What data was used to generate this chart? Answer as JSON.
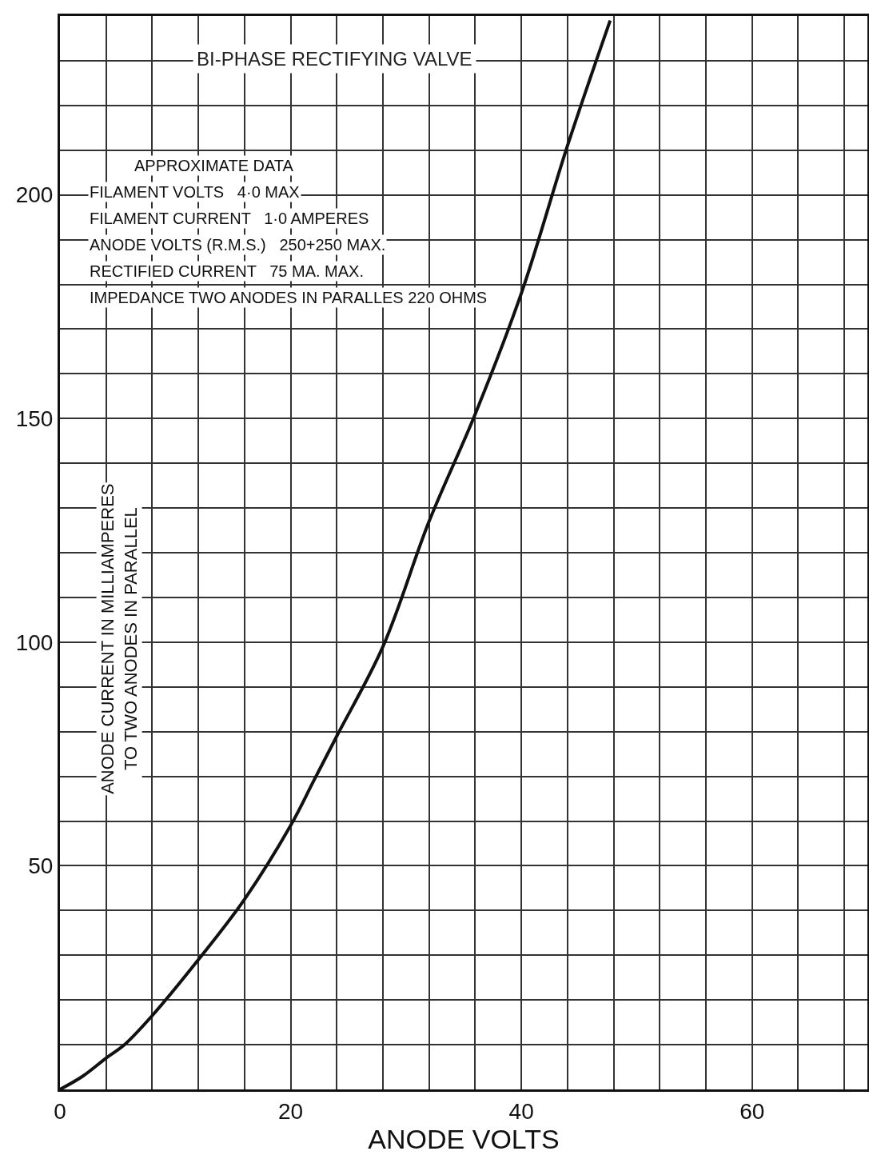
{
  "chart_data": {
    "type": "line",
    "title": "BI-PHASE RECTIFYING VALVE",
    "xlabel": "ANODE VOLTS",
    "ylabel": "ANODE CURRENT IN MILLIAMPERES\nTO TWO ANODES IN PARALLEL",
    "annotations": [
      "APPROXIMATE DATA",
      "FILAMENT VOLTS   4·0 MAX",
      "FILAMENT CURRENT   1·0 AMPERES",
      "ANODE VOLTS (R.M.S.)   250+250 MAX.",
      "RECTIFIED CURRENT   75 MA. MAX.",
      "IMPEDANCE TWO ANODES IN PARALLES 220 OHMS"
    ],
    "x": [
      0,
      2,
      4,
      5.6,
      8,
      12,
      16,
      20,
      22,
      24,
      28,
      32,
      36,
      40,
      44,
      47.7
    ],
    "series": [
      {
        "color": "#111111",
        "values": [
          0,
          3,
          7,
          10,
          16.5,
          29,
          42.5,
          59,
          69,
          79,
          99,
          127,
          151,
          178,
          211,
          239
        ]
      }
    ],
    "xlim": [
      0,
      70
    ],
    "ylim": [
      0,
      240
    ],
    "xticks": [
      0,
      {
        "value": 4,
        "label": null
      },
      {
        "value": 8,
        "label": null
      },
      {
        "value": 12,
        "label": null
      },
      {
        "value": 16,
        "label": null
      },
      20,
      {
        "value": 24,
        "label": null
      },
      {
        "value": 28,
        "label": null
      },
      {
        "value": 32,
        "label": null
      },
      {
        "value": 36,
        "label": null
      },
      40,
      {
        "value": 44,
        "label": null
      },
      {
        "value": 48,
        "label": null
      },
      {
        "value": 52,
        "label": null
      },
      {
        "value": 56,
        "label": null
      },
      60,
      {
        "value": 64,
        "label": null
      },
      {
        "value": 68,
        "label": null
      }
    ],
    "yticks": [
      {
        "value": 10,
        "label": null
      },
      {
        "value": 20,
        "label": null
      },
      {
        "value": 30,
        "label": null
      },
      {
        "value": 40,
        "label": null
      },
      50,
      {
        "value": 60,
        "label": null
      },
      {
        "value": 70,
        "label": null
      },
      {
        "value": 80,
        "label": null
      },
      {
        "value": 90,
        "label": null
      },
      100,
      {
        "value": 110,
        "label": null
      },
      {
        "value": 120,
        "label": null
      },
      {
        "value": 130,
        "label": null
      },
      {
        "value": 140,
        "label": null
      },
      150,
      {
        "value": 160,
        "label": null
      },
      {
        "value": 170,
        "label": null
      },
      {
        "value": 180,
        "label": null
      },
      {
        "value": 190,
        "label": null
      },
      200,
      {
        "value": 210,
        "label": null
      },
      {
        "value": 220,
        "label": null
      },
      {
        "value": 230,
        "label": null
      }
    ],
    "grid": true,
    "marker": "none",
    "line_style": "solid"
  }
}
